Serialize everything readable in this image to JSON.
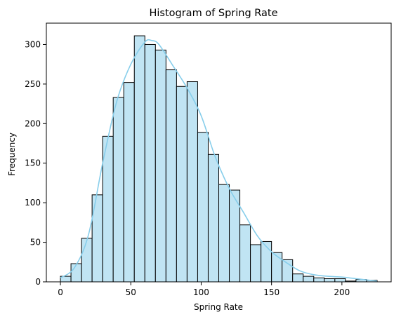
{
  "chart_data": {
    "type": "bar",
    "subtype": "histogram",
    "title": "Histogram of Spring Rate",
    "xlabel": "Spring Rate",
    "ylabel": "Frequency",
    "xlim": [
      -10,
      235
    ],
    "ylim": [
      0,
      327
    ],
    "xticks": [
      0,
      50,
      100,
      150,
      200
    ],
    "yticks": [
      0,
      50,
      100,
      150,
      200,
      250,
      300
    ],
    "bin_width": 7.5,
    "bin_edges_start": 0,
    "values": [
      7,
      23,
      55,
      110,
      184,
      233,
      252,
      311,
      300,
      293,
      268,
      247,
      253,
      189,
      161,
      123,
      116,
      72,
      47,
      51,
      37,
      28,
      10,
      7,
      5,
      4,
      4,
      1,
      3,
      2
    ],
    "kde": {
      "x": [
        0,
        10,
        20,
        30,
        40,
        50,
        60,
        65,
        70,
        80,
        90,
        100,
        110,
        120,
        130,
        140,
        150,
        160,
        170,
        180,
        190,
        200,
        210,
        225
      ],
      "y": [
        5,
        18,
        60,
        150,
        228,
        275,
        303,
        305,
        300,
        273,
        245,
        210,
        158,
        118,
        88,
        58,
        38,
        25,
        14,
        9,
        7,
        6,
        4,
        1
      ]
    },
    "grid": false,
    "colors": {
      "bar_fill": "#c0e4f3",
      "bar_edge": "#000000",
      "kde_line": "#87ceeb",
      "axes": "#000000"
    }
  }
}
